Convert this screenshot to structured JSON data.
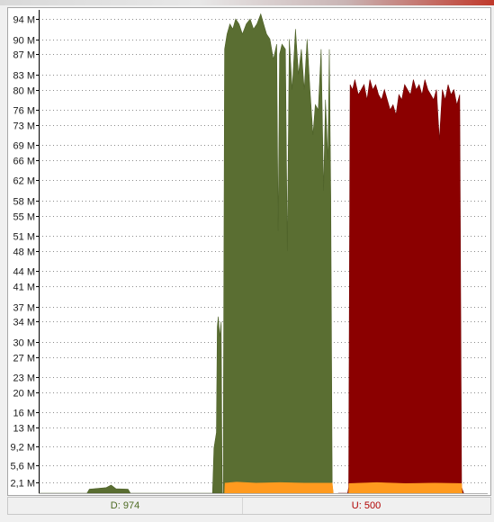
{
  "status": {
    "download_label": "D: 974",
    "upload_label": "U: 500"
  },
  "colors": {
    "download_fill": "#5a6e32",
    "download_edge": "#4d6128",
    "upload_fill": "#8b0000",
    "upload_edge": "#720000",
    "overhead_fill": "#ff9a1f",
    "grid": "#8c8c8c",
    "axis": "#000000"
  },
  "chart_data": {
    "type": "area",
    "title": "",
    "xlabel": "",
    "ylabel": "",
    "y_axis_position": "left",
    "grid": "horizontal-dotted",
    "y_tick_labels": [
      "2,1 M",
      "5,6 M",
      "9,2 M",
      "13 M",
      "16 M",
      "20 M",
      "23 M",
      "27 M",
      "30 M",
      "34 M",
      "37 M",
      "41 M",
      "44 M",
      "48 M",
      "51 M",
      "55 M",
      "58 M",
      "62 M",
      "66 M",
      "69 M",
      "73 M",
      "76 M",
      "80 M",
      "83 M",
      "87 M",
      "90 M",
      "94 M"
    ],
    "ylim": [
      0,
      95.8
    ],
    "series": [
      {
        "name": "D: 974",
        "color": "#5a6e32",
        "points": [
          [
            0,
            0
          ],
          [
            10,
            0
          ],
          [
            10.5,
            0.8
          ],
          [
            14,
            1.1
          ],
          [
            15,
            1.6
          ],
          [
            16,
            0.9
          ],
          [
            18.5,
            0.8
          ],
          [
            19,
            0
          ],
          [
            36,
            0
          ],
          [
            36.3,
            9
          ],
          [
            36.8,
            12
          ],
          [
            37,
            33
          ],
          [
            37.2,
            35
          ],
          [
            37.5,
            31
          ],
          [
            37.8,
            34
          ],
          [
            38,
            0
          ],
          [
            38.2,
            0
          ],
          [
            38.5,
            88
          ],
          [
            39,
            91
          ],
          [
            39.6,
            93
          ],
          [
            40.2,
            92
          ],
          [
            40.8,
            94
          ],
          [
            41.5,
            93
          ],
          [
            42.2,
            91
          ],
          [
            43,
            93
          ],
          [
            43.8,
            94
          ],
          [
            44.5,
            92
          ],
          [
            45.2,
            93
          ],
          [
            46,
            95
          ],
          [
            46.6,
            93
          ],
          [
            47.2,
            91
          ],
          [
            47.9,
            90
          ],
          [
            48.6,
            86
          ],
          [
            49.3,
            89
          ],
          [
            49.6,
            52
          ],
          [
            49.9,
            87
          ],
          [
            50.4,
            89
          ],
          [
            51.1,
            88
          ],
          [
            51.5,
            48
          ],
          [
            51.9,
            90
          ],
          [
            52.5,
            80
          ],
          [
            53.2,
            92
          ],
          [
            53.8,
            83
          ],
          [
            54.4,
            88
          ],
          [
            55,
            80
          ],
          [
            55.6,
            90
          ],
          [
            56.2,
            80
          ],
          [
            56.8,
            71
          ],
          [
            57.3,
            77
          ],
          [
            57.9,
            76
          ],
          [
            58.5,
            88
          ],
          [
            59,
            60
          ],
          [
            59.4,
            78
          ],
          [
            59.9,
            66
          ],
          [
            60.2,
            88
          ],
          [
            60.5,
            59
          ],
          [
            60.8,
            1.5
          ],
          [
            61,
            0
          ]
        ],
        "overhead": [
          [
            38.5,
            0
          ],
          [
            38.6,
            2.0
          ],
          [
            41,
            2.2
          ],
          [
            45,
            2.0
          ],
          [
            50,
            2.1
          ],
          [
            55,
            2.0
          ],
          [
            60.8,
            2.0
          ],
          [
            61,
            0
          ]
        ]
      },
      {
        "name": "U: 500",
        "color": "#8b0000",
        "points": [
          [
            62,
            0
          ],
          [
            64,
            0
          ],
          [
            64.2,
            1.2
          ],
          [
            64.5,
            81
          ],
          [
            65,
            80
          ],
          [
            65.5,
            82
          ],
          [
            66.2,
            79
          ],
          [
            66.8,
            80
          ],
          [
            67.4,
            81
          ],
          [
            68,
            78
          ],
          [
            68.6,
            82
          ],
          [
            69.2,
            80
          ],
          [
            69.8,
            81
          ],
          [
            70.4,
            79
          ],
          [
            71,
            78
          ],
          [
            71.6,
            80
          ],
          [
            72.2,
            78
          ],
          [
            72.8,
            76
          ],
          [
            73.4,
            77
          ],
          [
            74,
            75
          ],
          [
            74.6,
            79
          ],
          [
            75.2,
            78
          ],
          [
            75.8,
            81
          ],
          [
            76.4,
            80
          ],
          [
            77,
            79
          ],
          [
            77.6,
            82
          ],
          [
            78.2,
            80
          ],
          [
            78.8,
            81
          ],
          [
            79.4,
            79
          ],
          [
            80,
            82
          ],
          [
            80.6,
            80
          ],
          [
            81.2,
            79
          ],
          [
            81.8,
            78
          ],
          [
            82.4,
            80
          ],
          [
            83,
            70
          ],
          [
            83.6,
            80
          ],
          [
            84.2,
            78
          ],
          [
            84.8,
            81
          ],
          [
            85.4,
            79
          ],
          [
            86,
            80
          ],
          [
            86.6,
            77
          ],
          [
            87.2,
            79
          ],
          [
            87.6,
            1.2
          ],
          [
            88,
            0
          ]
        ],
        "overhead": [
          [
            64.2,
            0
          ],
          [
            64.3,
            1.9
          ],
          [
            70,
            2.1
          ],
          [
            76,
            1.9
          ],
          [
            82,
            2.0
          ],
          [
            87.6,
            1.9
          ],
          [
            87.7,
            0
          ]
        ]
      }
    ],
    "x_range": [
      0,
      93
    ]
  }
}
